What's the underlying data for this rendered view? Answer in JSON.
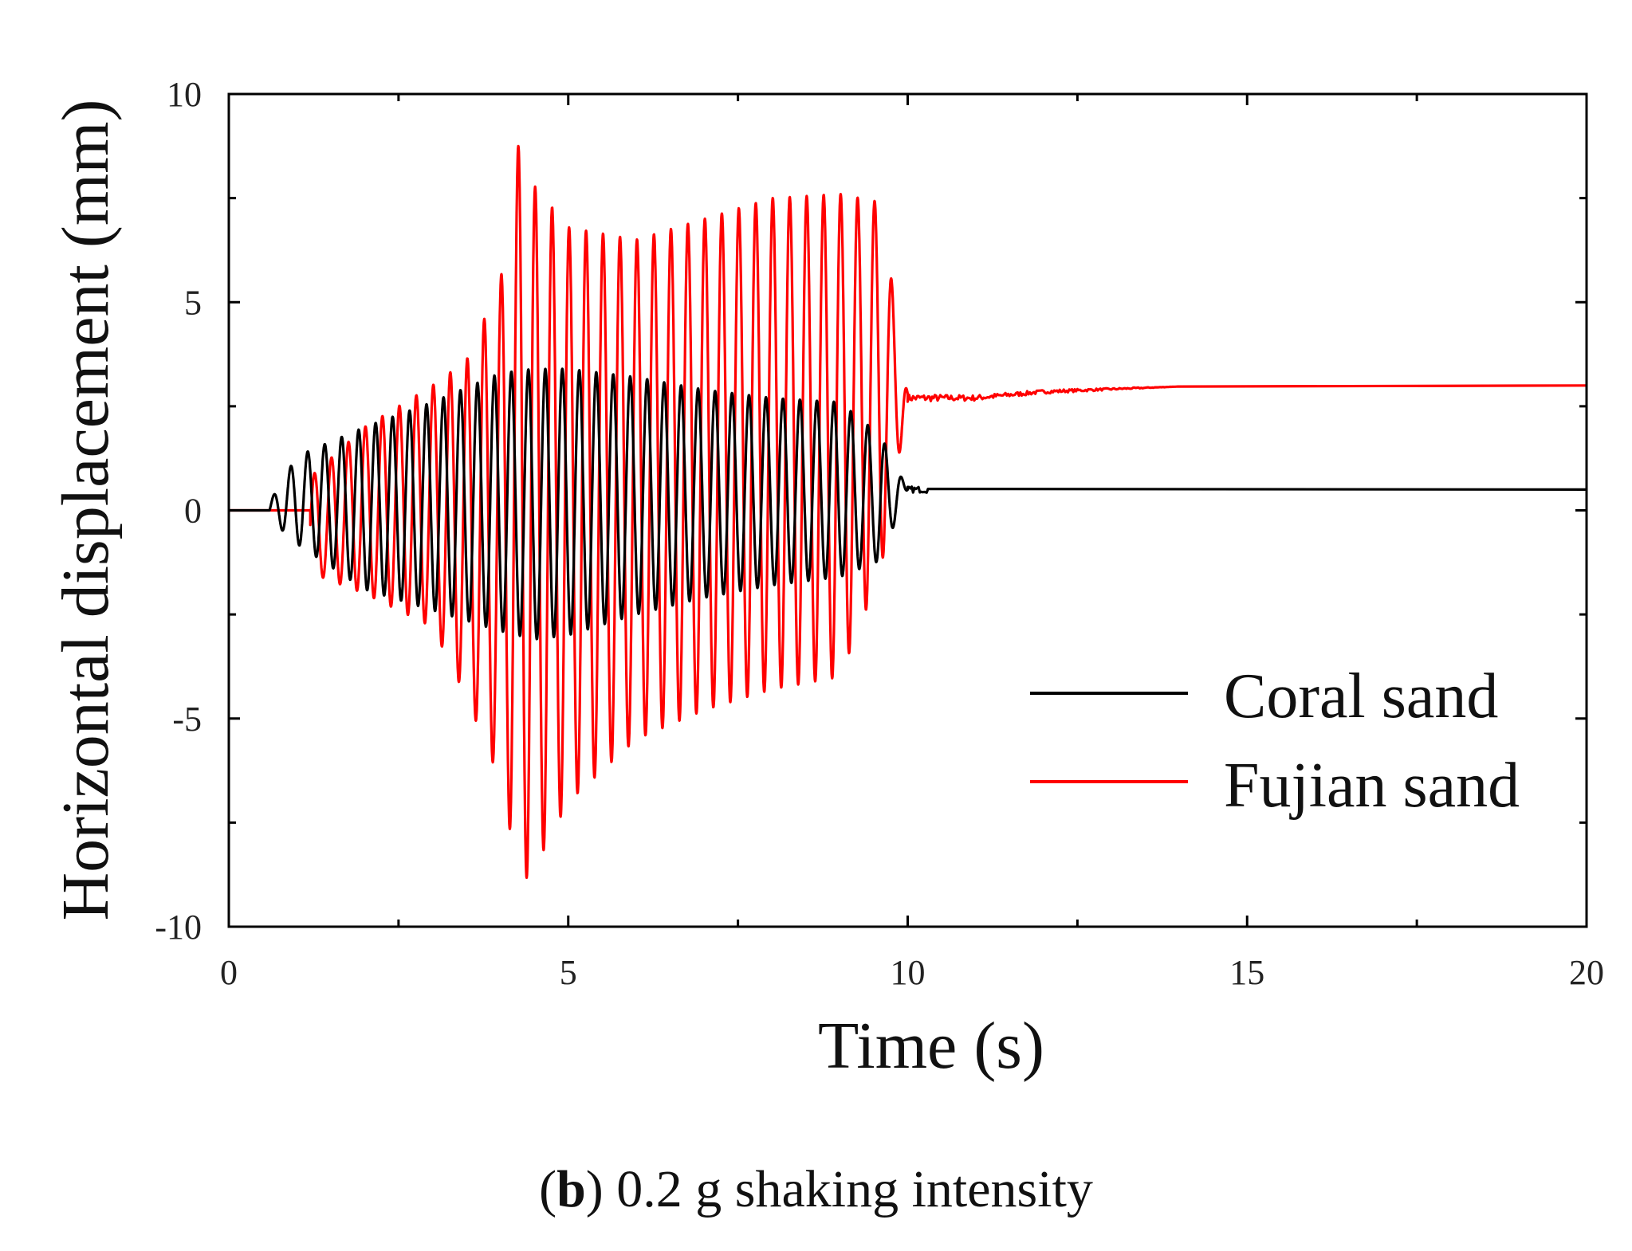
{
  "chart_data": {
    "type": "line",
    "title": "",
    "xlabel": "Time (s)",
    "ylabel": "Horizontal displacement (mm)",
    "xlim": [
      0,
      20
    ],
    "ylim": [
      -10,
      10
    ],
    "xticks": [
      "0",
      "5",
      "10",
      "15",
      "20"
    ],
    "yticks": [
      "-10",
      "-5",
      "0",
      "5",
      "10"
    ],
    "legend_position": "lower-right",
    "series": [
      {
        "name": "Coral sand",
        "color": "#000000",
        "description": "Oscillating response 0.6-10 s, residual ~0.5 mm after shaking",
        "envelope_t": [
          0.6,
          1.0,
          2.0,
          3.0,
          4.0,
          4.5,
          5.0,
          6.0,
          7.0,
          8.0,
          9.0,
          9.6,
          10.0,
          20.0
        ],
        "envelope_max": [
          0.2,
          1.3,
          2.0,
          2.6,
          3.3,
          3.4,
          3.4,
          3.2,
          2.9,
          2.7,
          2.6,
          1.8,
          0.5,
          0.5
        ],
        "envelope_min": [
          -0.2,
          -0.8,
          -1.9,
          -2.4,
          -2.9,
          -3.1,
          -3.0,
          -2.5,
          -2.1,
          -1.8,
          -1.6,
          -1.2,
          0.5,
          0.5
        ],
        "frequency_hz": 4.0,
        "residual": 0.5
      },
      {
        "name": "Fujian sand",
        "color": "#ff0000",
        "description": "Larger oscillations peaking ~9.2 mm near 4.3 s, residual ~3.0 mm",
        "envelope_t": [
          1.2,
          2.0,
          3.0,
          3.5,
          4.0,
          4.3,
          4.5,
          5.0,
          6.0,
          7.0,
          8.0,
          9.0,
          9.6,
          10.0,
          11.0,
          12.0,
          14.0,
          20.0
        ],
        "envelope_max": [
          0.8,
          2.0,
          3.0,
          3.6,
          5.5,
          9.2,
          7.8,
          6.8,
          6.5,
          7.0,
          7.5,
          7.6,
          7.4,
          2.8,
          2.8,
          2.9,
          3.0,
          3.0
        ],
        "envelope_min": [
          -1.5,
          -2.0,
          -2.8,
          -4.5,
          -6.5,
          -9.0,
          -8.6,
          -7.0,
          -5.5,
          -4.8,
          -4.3,
          -4.0,
          -1.5,
          2.6,
          2.6,
          2.8,
          2.95,
          3.0
        ],
        "frequency_hz": 4.0,
        "residual": 3.0
      }
    ]
  },
  "caption": {
    "label": "b",
    "text": "0.2 g shaking intensity"
  }
}
